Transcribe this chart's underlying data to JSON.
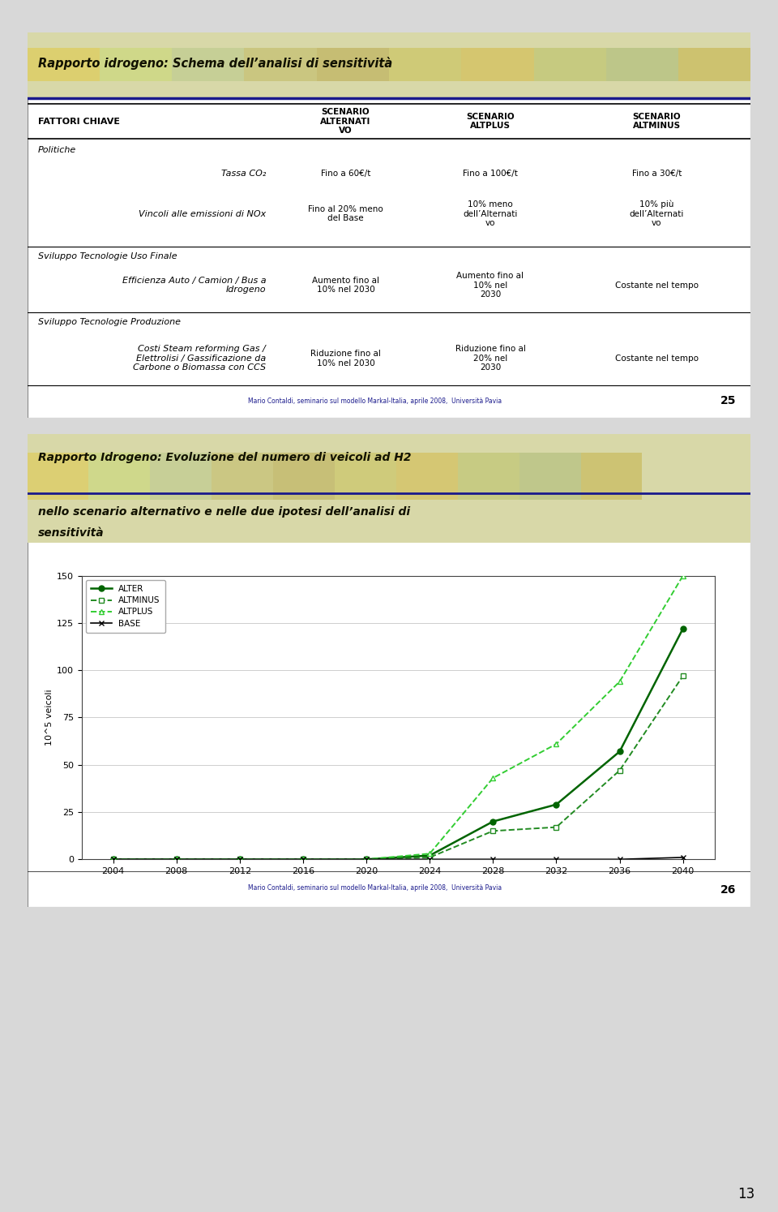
{
  "slide1": {
    "title": "Rapporto idrogeno: Schema dell’analisi di sensitività",
    "table_header": [
      "FATTORI CHIAVE",
      "SCENARIO\nALTERNATI\nVO",
      "SCENARIO\nALTPLUS",
      "SCENARIO\nALTMINUS"
    ],
    "section1_label": "Politiche",
    "rows": [
      [
        "Tassa CO₂",
        "Fino a 60€/t",
        "Fino a 100€/t",
        "Fino a 30€/t"
      ],
      [
        "Vincoli alle emissioni di NOx",
        "Fino al 20% meno\ndel Base",
        "10% meno\ndell’Alternati\nvo",
        "10% più\ndell’Alternati\nvo"
      ]
    ],
    "section2_label": "Sviluppo Tecnologie Uso Finale",
    "rows2": [
      [
        "Efficienza Auto / Camion / Bus a\nIdrogeno",
        "Aumento fino al\n10% nel 2030",
        "Aumento fino al\n10% nel\n2030",
        "Costante nel tempo"
      ]
    ],
    "section3_label": "Sviluppo Tecnologie Produzione",
    "rows3": [
      [
        "Costi Steam reforming Gas /\nElettrolisi / Gassificazione da\nCarbone o Biomassa con CCS",
        "Riduzione fino al\n10% nel 2030",
        "Riduzione fino al\n20% nel\n2030",
        "Costante nel tempo"
      ]
    ],
    "footer": "Mario Contaldi, seminario sul modello Markal-Italia, aprile 2008,  Università Pavia",
    "slide_number": "25",
    "line_color": "#1a1a8c"
  },
  "slide2": {
    "title_line1": "Rapporto Idrogeno: Evoluzione del numero di veicoli ad H2",
    "title_line2": "nello scenario alternativo e nelle due ipotesi dell’analisi di",
    "title_line3": "sensitività",
    "line_color": "#1a1a8c",
    "years": [
      2004,
      2008,
      2012,
      2016,
      2020,
      2024,
      2028,
      2032,
      2036,
      2040
    ],
    "ALTER": [
      0,
      0,
      0,
      0,
      0,
      2,
      20,
      29,
      57,
      122
    ],
    "ALTMINUS": [
      0,
      0,
      0,
      0,
      0,
      1,
      15,
      17,
      47,
      97
    ],
    "ALTPLUS": [
      0,
      0,
      0,
      0,
      0,
      3,
      43,
      61,
      94,
      150
    ],
    "BASE": [
      0,
      0,
      0,
      0,
      0,
      0,
      0,
      0,
      0,
      1
    ],
    "ylabel": "10^5 veicoli",
    "ylim": [
      0,
      150
    ],
    "yticks": [
      0,
      25,
      50,
      75,
      100,
      125,
      150
    ],
    "alter_color": "#006400",
    "altminus_color": "#228B22",
    "altplus_color": "#32CD32",
    "base_color": "#000000",
    "footer": "Mario Contaldi, seminario sul modello Markal-Italia, aprile 2008,  Università Pavia",
    "slide_number": "26"
  },
  "page_number": "13",
  "page_bg": "#d8d8d8"
}
